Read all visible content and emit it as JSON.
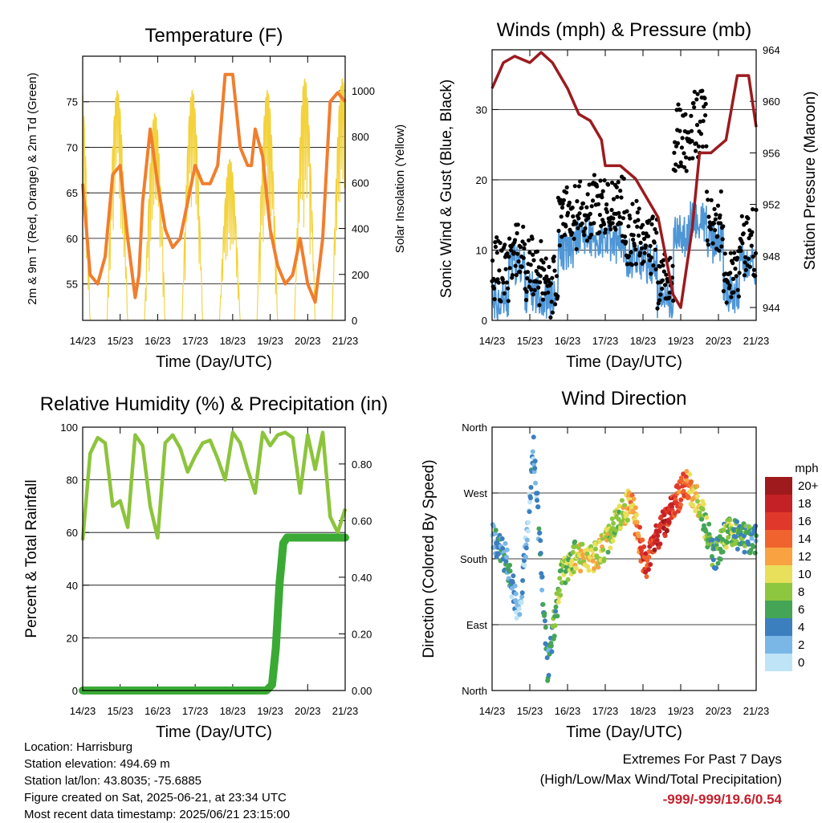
{
  "footer": {
    "location": "Location: Harrisburg",
    "elevation": "Station elevation: 494.69 m",
    "latlon": "Station lat/lon: 43.8035; -75.6885",
    "created": "Figure created on Sat, 2025-06-21, at 23:34 UTC",
    "latest": "Most recent data timestamp: 2025/06/21 23:15:00"
  },
  "extremes": {
    "title": "Extremes For Past 7 Days",
    "subtitle": "(High/Low/Max Wind/Total Precipitation)",
    "values": "-999/-999/19.6/0.54"
  },
  "chart_data": [
    {
      "type": "line",
      "title": "Temperature (F)",
      "xlabel": "Time (Day/UTC)",
      "ylabel": "2m & 9m T (Red, Orange) & 2m Td (Green)",
      "y2label": "Solar Insolation (Yellow)",
      "x_ticks": [
        "14/23",
        "15/23",
        "16/23",
        "17/23",
        "18/23",
        "19/23",
        "20/23",
        "21/23"
      ],
      "ylim": [
        51,
        80
      ],
      "yticks": [
        55.0,
        60.0,
        65.0,
        70.0,
        75.0
      ],
      "y2lim": [
        0,
        1150
      ],
      "y2ticks": [
        0,
        200,
        400,
        600,
        800,
        1000
      ],
      "grid": true,
      "series": [
        {
          "color": "#f07e2e",
          "x": [
            0,
            0.2,
            0.4,
            0.6,
            0.8,
            1.0,
            1.2,
            1.4,
            1.5,
            1.6,
            1.8,
            2.0,
            2.2,
            2.4,
            2.6,
            2.8,
            3.0,
            3.2,
            3.4,
            3.6,
            3.8,
            4.0,
            4.2,
            4.4,
            4.5,
            4.6,
            4.8,
            5.0,
            5.2,
            5.4,
            5.6,
            5.8,
            6.0,
            6.2,
            6.4,
            6.6,
            6.8,
            7.0
          ],
          "y": [
            66,
            56,
            55,
            58,
            67,
            68,
            60,
            53.5,
            56,
            64,
            72,
            66,
            61,
            59,
            60,
            64,
            68,
            66,
            66,
            68,
            78,
            78,
            70,
            68,
            68,
            72,
            69,
            61,
            57,
            55,
            56,
            60,
            55,
            53,
            60,
            75,
            76,
            75
          ]
        }
      ],
      "solar": {
        "color": "#f3d23a",
        "day_peaks": [
          1100,
          1000,
          900,
          1000,
          700,
          1000,
          1050,
          1050
        ]
      }
    },
    {
      "type": "scatter",
      "title": "Winds (mph) & Pressure (mb)",
      "xlabel": "Time (Day/UTC)",
      "ylabel": "Sonic Wind & Gust (Blue, Black)",
      "y2label": "Station Pressure (Maroon)",
      "x_ticks": [
        "14/23",
        "15/23",
        "16/23",
        "17/23",
        "18/23",
        "19/23",
        "20/23",
        "21/23"
      ],
      "ylim": [
        0,
        38.5
      ],
      "yticks": [
        0,
        10,
        20,
        30
      ],
      "y2lim": [
        943,
        964
      ],
      "y2ticks": [
        944,
        948,
        952,
        956,
        960,
        964
      ],
      "grid": true,
      "wind_mean": [
        3,
        8,
        4,
        3,
        10,
        12,
        11,
        11,
        9,
        8,
        3,
        12,
        14,
        11,
        4,
        8
      ],
      "gust_mean": [
        7,
        9,
        7,
        5,
        14,
        15,
        16,
        16,
        12,
        10,
        5,
        26,
        28,
        14,
        5,
        11
      ],
      "pressure": {
        "color": "#9b1b1f",
        "x": [
          0,
          0.3,
          0.6,
          1.0,
          1.3,
          1.6,
          2.0,
          2.3,
          2.6,
          2.9,
          3.0,
          3.4,
          3.8,
          4.0,
          4.4,
          4.8,
          5.0,
          5.3,
          5.5,
          5.8,
          6.2,
          6.5,
          6.8,
          7.0
        ],
        "y": [
          961,
          963,
          963.5,
          963,
          963.8,
          963,
          961,
          959,
          958.5,
          957,
          955,
          955,
          954,
          953,
          951,
          945,
          944,
          950,
          956,
          956,
          957,
          962,
          962,
          958
        ]
      }
    },
    {
      "type": "line",
      "title": "Relative Humidity (%) & Precipitation (in)",
      "xlabel": "Time (Day/UTC)",
      "ylabel": "Percent & Total Rainfall",
      "x_ticks": [
        "14/23",
        "15/23",
        "16/23",
        "17/23",
        "18/23",
        "19/23",
        "20/23",
        "21/23"
      ],
      "ylim": [
        0,
        100
      ],
      "yticks": [
        0,
        20,
        40,
        60,
        80,
        100
      ],
      "y2lim": [
        0,
        0.93
      ],
      "y2ticks": [
        0.0,
        0.2,
        0.4,
        0.6,
        0.8
      ],
      "y2ticklabels": [
        "0.00",
        "0.20",
        "0.40",
        "0.60",
        "0.80"
      ],
      "grid": true,
      "series": [
        {
          "color": "#8cc43c",
          "x": [
            0,
            0.2,
            0.4,
            0.6,
            0.8,
            1.0,
            1.2,
            1.4,
            1.6,
            1.8,
            2.0,
            2.2,
            2.4,
            2.6,
            2.8,
            3.0,
            3.2,
            3.4,
            3.6,
            3.8,
            4.0,
            4.2,
            4.4,
            4.6,
            4.8,
            5.0,
            5.2,
            5.4,
            5.6,
            5.8,
            6.0,
            6.2,
            6.4,
            6.6,
            6.8,
            7.0
          ],
          "y": [
            57,
            90,
            96,
            94,
            70,
            72,
            62,
            97,
            93,
            70,
            58,
            94,
            97,
            92,
            83,
            89,
            94,
            95,
            88,
            80,
            98,
            94,
            84,
            75,
            98,
            93,
            97,
            98,
            96,
            75,
            97,
            84,
            98,
            66,
            60,
            69
          ]
        },
        {
          "color": "#3aaa35",
          "x": [
            0,
            4.9,
            5.05,
            5.15,
            5.25,
            5.35,
            5.45,
            7.0
          ],
          "y": [
            0,
            0,
            0.02,
            0.15,
            0.38,
            0.52,
            0.54,
            0.54
          ]
        }
      ]
    },
    {
      "type": "scatter",
      "title": "Wind Direction",
      "xlabel": "Time (Day/UTC)",
      "ylabel": "Direction (Colored By Speed)",
      "x_ticks": [
        "14/23",
        "15/23",
        "16/23",
        "17/23",
        "18/23",
        "19/23",
        "20/23",
        "21/23"
      ],
      "ylim": [
        0,
        360
      ],
      "yticks": [
        0,
        90,
        180,
        270,
        360
      ],
      "yticklabels": [
        "North",
        "East",
        "South",
        "West",
        "North"
      ],
      "grid": true,
      "direction_path": [
        210,
        180,
        100,
        330,
        30,
        160,
        185,
        175,
        195,
        230,
        260,
        170,
        215,
        250,
        285,
        250,
        180,
        220,
        210,
        205
      ],
      "speed_path": [
        3,
        4,
        2,
        3,
        4,
        8,
        9,
        10,
        10,
        8,
        12,
        15,
        18,
        16,
        13,
        9,
        5,
        8,
        6,
        4
      ],
      "legend": {
        "title": "mph",
        "labels": [
          "20+",
          "18",
          "16",
          "14",
          "12",
          "10",
          "8",
          "6",
          "4",
          "2",
          "0"
        ],
        "colors": [
          "#9e1a1c",
          "#c42126",
          "#e0392b",
          "#f0632e",
          "#f9a242",
          "#e8e05a",
          "#8dc63f",
          "#45a557",
          "#3c7fbf",
          "#7ab7e6",
          "#bfe4f7"
        ]
      }
    }
  ]
}
